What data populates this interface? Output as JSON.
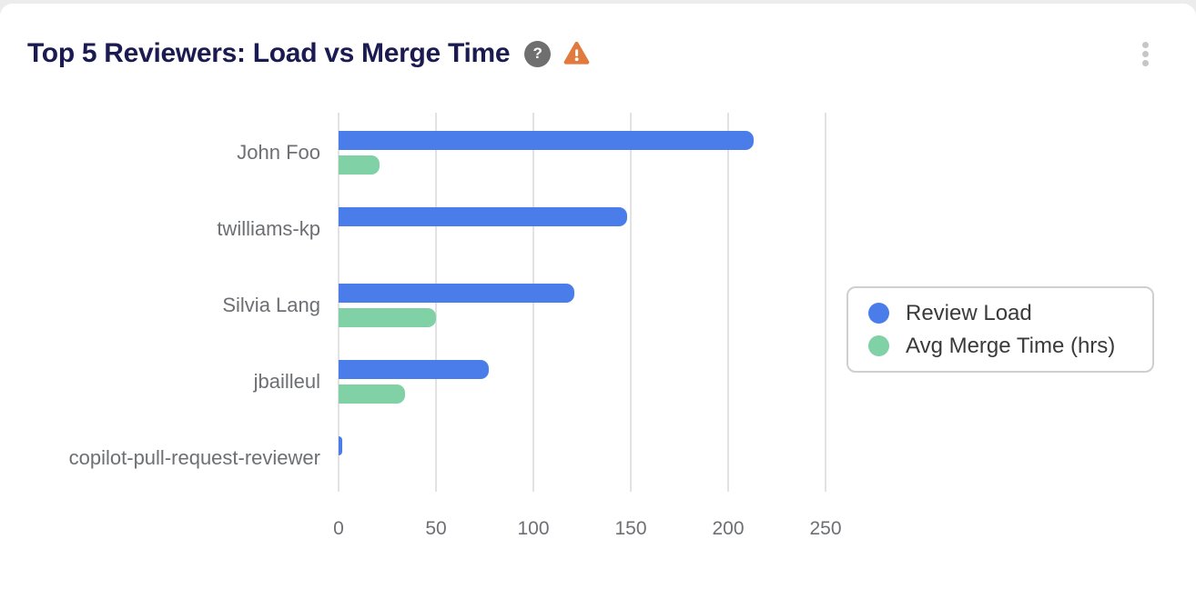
{
  "header": {
    "title": "Top 5 Reviewers: Load vs Merge Time",
    "icons": {
      "help": {
        "name": "help-icon",
        "glyph": "?",
        "bg_color": "#6f6f6f"
      },
      "warning": {
        "name": "warning-icon",
        "glyph": "!",
        "color": "#e17a3d"
      },
      "menu": {
        "name": "kebab-menu-icon",
        "dot_color": "#c6c6c6"
      }
    }
  },
  "chart_data": {
    "type": "bar",
    "orientation": "horizontal",
    "title": "Top 5 Reviewers: Load vs Merge Time",
    "categories": [
      "John Foo",
      "twilliams-kp",
      "Silvia Lang",
      "jbailleul",
      "copilot-pull-request-reviewer"
    ],
    "series": [
      {
        "name": "Review Load",
        "color": "#4a7de9",
        "values": [
          213,
          148,
          121,
          77,
          2
        ]
      },
      {
        "name": "Avg Merge Time (hrs)",
        "color": "#80d1a5",
        "values": [
          21,
          0,
          50,
          34,
          0
        ]
      }
    ],
    "x_ticks": [
      0,
      50,
      100,
      150,
      200,
      250
    ],
    "xlim": [
      0,
      250
    ],
    "xlabel": "",
    "ylabel": "",
    "grid": "vertical-only",
    "gridline_color": "#e2e2e2",
    "label_color": "#6d6f73",
    "legend_position": "right",
    "legend_labels": [
      "Review Load",
      "Avg Merge Time (hrs)"
    ]
  }
}
